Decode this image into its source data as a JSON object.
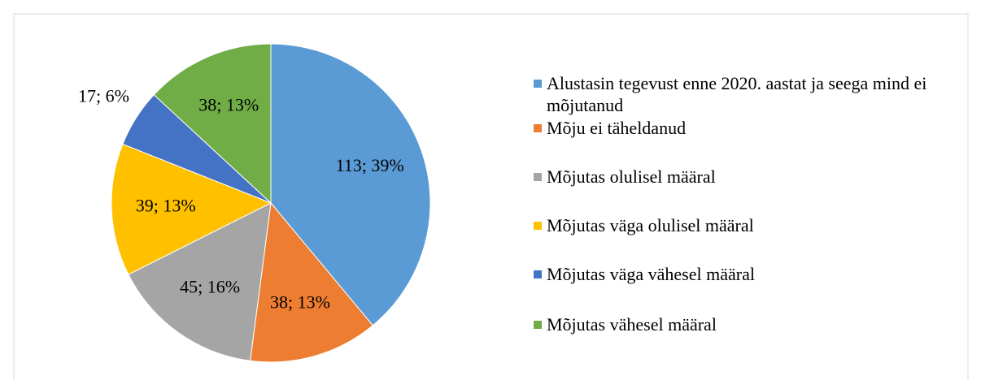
{
  "chart_data": {
    "type": "pie",
    "categories": [
      "Alustasin tegevust enne 2020. aastat ja seega mind ei mõjutanud",
      "Mõju ei täheldanud",
      "Mõjutas olulisel määral",
      "Mõjutas väga olulisel määral",
      "Mõjutas väga vähesel määral",
      "Mõjutas vähesel määral"
    ],
    "values": [
      113,
      38,
      45,
      39,
      17,
      38
    ],
    "value_labels": [
      "113; 39%",
      "38; 13%",
      "45; 16%",
      "39; 13%",
      "17; 6%",
      "38; 13%"
    ],
    "colors": [
      "#5b9bd5",
      "#ed7d31",
      "#a5a5a5",
      "#ffc000",
      "#4472c4",
      "#70ad47"
    ],
    "legend": "right"
  }
}
